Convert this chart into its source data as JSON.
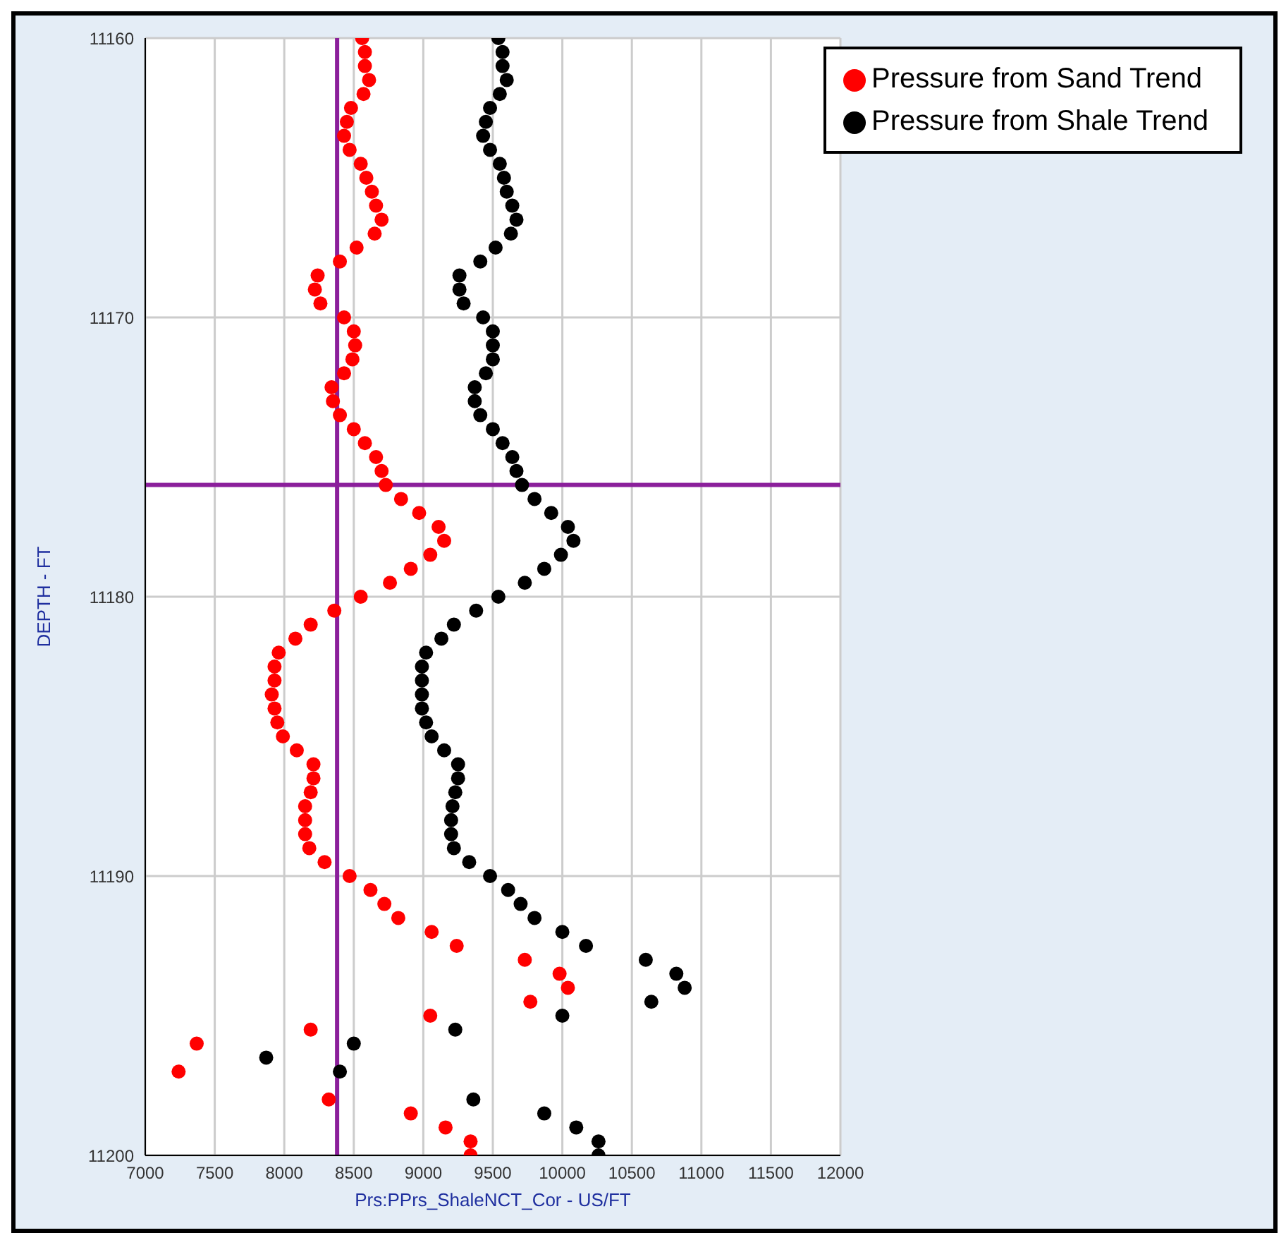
{
  "chart_data": {
    "type": "scatter",
    "xlabel": "Prs:PPrs_ShaleNCT_Cor - US/FT",
    "ylabel": "DEPTH - FT",
    "xlim": [
      7000,
      12000
    ],
    "xticks": [
      7000,
      7500,
      8000,
      8500,
      9000,
      9500,
      10000,
      10500,
      11000,
      11500,
      12000
    ],
    "ylim": [
      11200,
      11160
    ],
    "yticks": [
      11160,
      11170,
      11180,
      11190,
      11200
    ],
    "grid": true,
    "legend": "top right",
    "marker": "circle",
    "ref_lines": [
      {
        "axis": "x",
        "value": 8380,
        "color": "#8b1f9b"
      },
      {
        "axis": "y",
        "value": 11176,
        "color": "#8b1f9b"
      }
    ],
    "series": [
      {
        "name": "Pressure from Shale Trend",
        "color": "#000000",
        "x": [
          9540,
          9570,
          9570,
          9600,
          9550,
          9480,
          9450,
          9430,
          9480,
          9550,
          9580,
          9600,
          9640,
          9670,
          9630,
          9520,
          9410,
          9260,
          9260,
          9290,
          9430,
          9500,
          9500,
          9500,
          9450,
          9370,
          9370,
          9410,
          9500,
          9570,
          9640,
          9670,
          9710,
          9800,
          9920,
          10040,
          10080,
          9990,
          9870,
          9730,
          9540,
          9380,
          9220,
          9130,
          9020,
          8990,
          8990,
          8990,
          8990,
          9020,
          9060,
          9150,
          9250,
          9250,
          9230,
          9210,
          9200,
          9200,
          9220,
          9330,
          9480,
          9610,
          9700,
          9800,
          10000,
          10170,
          10600,
          10820,
          10880,
          10640,
          10000,
          9230,
          8500,
          7870,
          8400,
          9360,
          9870,
          10100,
          10260,
          10260
        ],
        "values": [
          11160,
          11160.5,
          11161,
          11161.5,
          11162,
          11162.5,
          11163,
          11163.5,
          11164,
          11164.5,
          11165,
          11165.5,
          11166,
          11166.5,
          11167,
          11167.5,
          11168,
          11168.5,
          11169,
          11169.5,
          11170,
          11170.5,
          11171,
          11171.5,
          11172,
          11172.5,
          11173,
          11173.5,
          11174,
          11174.5,
          11175,
          11175.5,
          11176,
          11176.5,
          11177,
          11177.5,
          11178,
          11178.5,
          11179,
          11179.5,
          11180,
          11180.5,
          11181,
          11181.5,
          11182,
          11182.5,
          11183,
          11183.5,
          11184,
          11184.5,
          11185,
          11185.5,
          11186,
          11186.5,
          11187,
          11187.5,
          11188,
          11188.5,
          11189,
          11189.5,
          11190,
          11190.5,
          11191,
          11191.5,
          11192,
          11192.5,
          11193,
          11193.5,
          11194,
          11194.5,
          11195,
          11195.5,
          11196,
          11196.5,
          11197,
          11198,
          11198.5,
          11199,
          11199.5,
          11200
        ]
      },
      {
        "name": "Pressure from Sand Trend",
        "color": "#ff0000",
        "x": [
          8560,
          8580,
          8580,
          8610,
          8570,
          8480,
          8450,
          8430,
          8470,
          8550,
          8590,
          8630,
          8660,
          8700,
          8650,
          8520,
          8400,
          8240,
          8220,
          8260,
          8430,
          8500,
          8510,
          8490,
          8430,
          8340,
          8350,
          8400,
          8500,
          8580,
          8660,
          8700,
          8730,
          8840,
          8970,
          9110,
          9150,
          9050,
          8910,
          8760,
          8550,
          8360,
          8190,
          8080,
          7960,
          7930,
          7930,
          7910,
          7930,
          7950,
          7990,
          8090,
          8210,
          8210,
          8190,
          8150,
          8150,
          8150,
          8180,
          8290,
          8470,
          8620,
          8720,
          8820,
          9060,
          9240,
          9730,
          9980,
          10040,
          9770,
          9050,
          8190,
          7370,
          7240,
          8320,
          8910,
          9160,
          9340,
          9340
        ],
        "values": [
          11160,
          11160.5,
          11161,
          11161.5,
          11162,
          11162.5,
          11163,
          11163.5,
          11164,
          11164.5,
          11165,
          11165.5,
          11166,
          11166.5,
          11167,
          11167.5,
          11168,
          11168.5,
          11169,
          11169.5,
          11170,
          11170.5,
          11171,
          11171.5,
          11172,
          11172.5,
          11173,
          11173.5,
          11174,
          11174.5,
          11175,
          11175.5,
          11176,
          11176.5,
          11177,
          11177.5,
          11178,
          11178.5,
          11179,
          11179.5,
          11180,
          11180.5,
          11181,
          11181.5,
          11182,
          11182.5,
          11183,
          11183.5,
          11184,
          11184.5,
          11185,
          11185.5,
          11186,
          11186.5,
          11187,
          11187.5,
          11188,
          11188.5,
          11189,
          11189.5,
          11190,
          11190.5,
          11191,
          11191.5,
          11192,
          11192.5,
          11193,
          11193.5,
          11194,
          11194.5,
          11195,
          11195.5,
          11196,
          11197,
          11198,
          11198.5,
          11199,
          11199.5,
          11200
        ]
      }
    ]
  }
}
